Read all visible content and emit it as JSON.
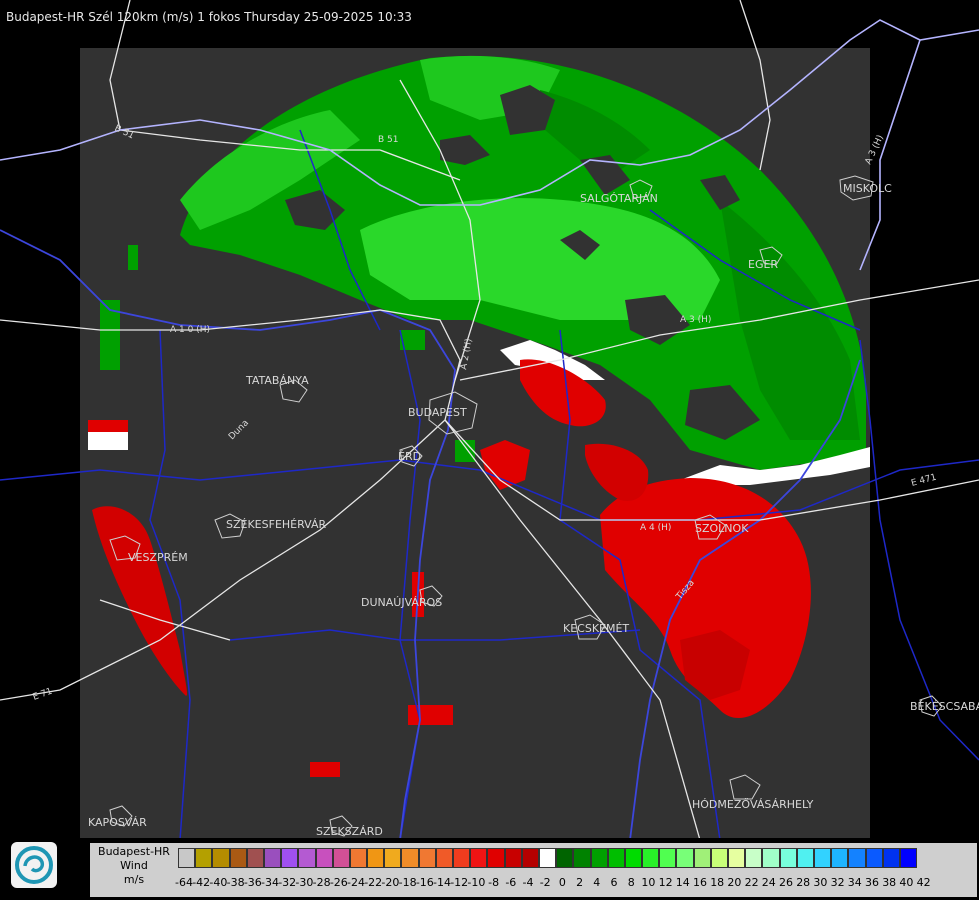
{
  "title": "Budapest-HR Szél 120km (m/s) 1 fokos Thursday 25-09-2025 10:33",
  "cities": [
    {
      "name": "SALGÓTARJÁN"
    },
    {
      "name": "MISKOLC"
    },
    {
      "name": "EGER"
    },
    {
      "name": "TATABÁNYA"
    },
    {
      "name": "BUDAPEST"
    },
    {
      "name": "ÉRD"
    },
    {
      "name": "SZÉKESFEHÉRVÁR"
    },
    {
      "name": "VESZPRÉM"
    },
    {
      "name": "DUNAÚJVÁROS"
    },
    {
      "name": "KECSKEMÉT"
    },
    {
      "name": "SZOLNOK"
    },
    {
      "name": "BÉKÉSCSABA"
    },
    {
      "name": "HÓDMEZŐVÁSÁRHELY"
    },
    {
      "name": "KAPOSVÁR"
    },
    {
      "name": "SZEKSZÁRD"
    }
  ],
  "roads": [
    {
      "name": "B 51"
    },
    {
      "name": "B 51"
    },
    {
      "name": "A 3 (H)"
    },
    {
      "name": "A 3 (H)"
    },
    {
      "name": "A 1 0 (H)"
    },
    {
      "name": "A 2 (H)"
    },
    {
      "name": "E 471"
    },
    {
      "name": "A 4 (H)"
    },
    {
      "name": "E 71"
    },
    {
      "name": "Tisza"
    },
    {
      "name": "Duna"
    }
  ],
  "legend": {
    "station": "Budapest-HR",
    "product": "Wind",
    "unit": "m/s",
    "values": [
      "-64",
      "-42",
      "-40",
      "-38",
      "-36",
      "-34",
      "-32",
      "-30",
      "-28",
      "-26",
      "-24",
      "-22",
      "-20",
      "-18",
      "-16",
      "-14",
      "-12",
      "-10",
      "-8",
      "-6",
      "-4",
      "-2",
      "0",
      "2",
      "4",
      "6",
      "8",
      "10",
      "12",
      "14",
      "16",
      "18",
      "20",
      "22",
      "24",
      "26",
      "28",
      "30",
      "32",
      "34",
      "36",
      "38",
      "40",
      "42"
    ],
    "colors": [
      "#c8c8c8",
      "#b4a000",
      "#b48c00",
      "#aa5a14",
      "#a05050",
      "#9a4fbe",
      "#a050f0",
      "#b45ad2",
      "#c850be",
      "#d25096",
      "#f07832",
      "#f09614",
      "#f0aa1e",
      "#f08c28",
      "#f07832",
      "#f05a28",
      "#f03c1e",
      "#f01414",
      "#e00000",
      "#c80000",
      "#b40000",
      "#ffffff",
      "#006400",
      "#008200",
      "#00a000",
      "#00be00",
      "#00dc00",
      "#28f028",
      "#50ff50",
      "#78ff78",
      "#a0f078",
      "#c8ff78",
      "#e6ffa0",
      "#c8ffc8",
      "#a0ffc8",
      "#78ffdc",
      "#50f0f0",
      "#32d2ff",
      "#1eb4ff",
      "#1482ff",
      "#0a5aff",
      "#0032f0",
      "#0000ff"
    ],
    "colors_note": ""
  }
}
